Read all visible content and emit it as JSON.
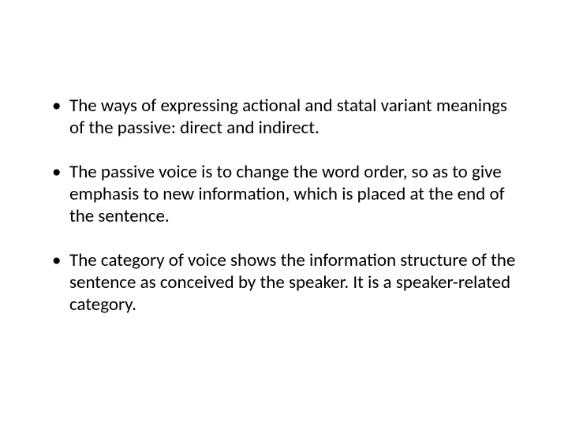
{
  "slide": {
    "background_color": "#ffffff",
    "text_color": "#000000",
    "font_family": "Calibri",
    "bullet_fontsize": 23,
    "bullets": [
      "The  ways of expressing actional and statal variant meanings of the passive: direct and indirect.",
      "The passive voice is to change the word order, so as to give emphasis to new information, which is placed at the end of the sentence.",
      "The category of voice shows the information structure of the sentence as conceived by the speaker. It is a speaker-related category."
    ]
  }
}
